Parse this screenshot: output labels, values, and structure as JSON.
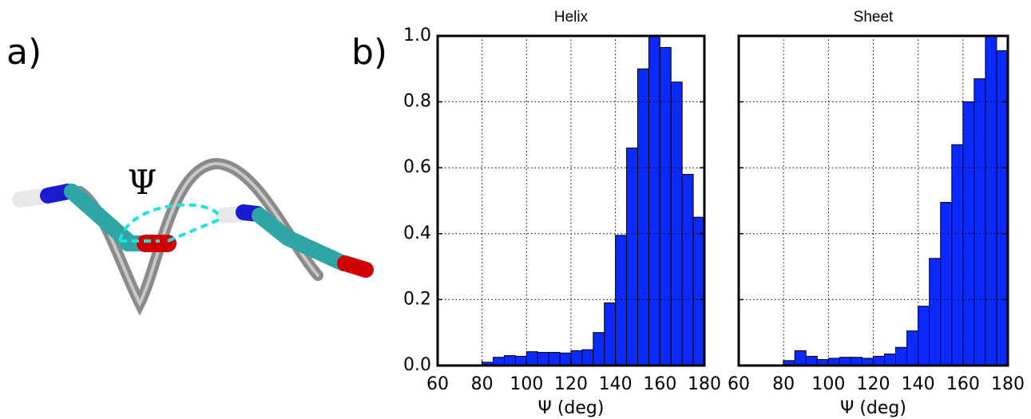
{
  "panels": {
    "a": "a)",
    "b": "b)"
  },
  "molecule_label": "Ψ",
  "chart_data": [
    {
      "type": "histogram",
      "title": "Helix",
      "xlabel": "Ψ (deg)",
      "bins": [
        60,
        65,
        70,
        75,
        80,
        85,
        90,
        95,
        100,
        105,
        110,
        115,
        120,
        125,
        130,
        135,
        140,
        145,
        150,
        155,
        160,
        165,
        170,
        175,
        180
      ],
      "values": [
        0,
        0,
        0,
        0,
        0.01,
        0.025,
        0.03,
        0.028,
        0.042,
        0.04,
        0.04,
        0.038,
        0.045,
        0.048,
        0.1,
        0.19,
        0.395,
        0.66,
        0.9,
        1.0,
        0.965,
        0.86,
        0.58,
        0.45
      ],
      "color": "#0a2aff",
      "xlim": [
        60,
        180
      ],
      "ylim": [
        0,
        1
      ],
      "xticks": [
        60,
        80,
        100,
        120,
        140,
        160,
        180
      ],
      "yticks": [
        {
          "value": 0,
          "label": "0.0"
        },
        {
          "value": 0.2,
          "label": "0.2"
        },
        {
          "value": 0.4,
          "label": "0.4"
        },
        {
          "value": 0.6,
          "label": "0.6"
        },
        {
          "value": 0.8,
          "label": "0.8"
        },
        {
          "value": 1,
          "label": "1.0"
        }
      ],
      "grid": true
    },
    {
      "type": "histogram",
      "title": "Sheet",
      "xlabel": "Ψ (deg)",
      "bins": [
        60,
        65,
        70,
        75,
        80,
        85,
        90,
        95,
        100,
        105,
        110,
        115,
        120,
        125,
        130,
        135,
        140,
        145,
        150,
        155,
        160,
        165,
        170,
        175,
        180
      ],
      "values": [
        0,
        0,
        0,
        0,
        0.015,
        0.045,
        0.028,
        0.018,
        0.022,
        0.025,
        0.025,
        0.022,
        0.028,
        0.035,
        0.055,
        0.105,
        0.18,
        0.325,
        0.495,
        0.67,
        0.8,
        0.87,
        1.0,
        0.955
      ],
      "color": "#0a2aff",
      "xlim": [
        60,
        180
      ],
      "ylim": [
        0,
        1
      ],
      "xticks": [
        60,
        80,
        100,
        120,
        140,
        160,
        180
      ],
      "yticks": [
        0,
        0.2,
        0.4,
        0.6,
        0.8,
        1
      ],
      "ytick_labels": false,
      "grid": true
    }
  ]
}
